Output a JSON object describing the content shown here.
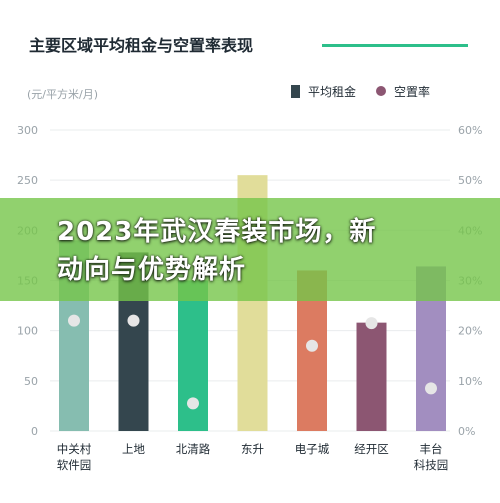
{
  "header": {
    "title": "主要区域平均租金与空置率表现",
    "unit": "(元/平方米/月)"
  },
  "legend": {
    "rent_label": "平均租金",
    "vacancy_label": "空置率"
  },
  "overlay": {
    "headline_line1": "2023年武汉春装市场，新",
    "headline_line2": "动向与优势解析"
  },
  "chart_data": {
    "type": "bar",
    "categories": [
      [
        "中关村",
        "软件园"
      ],
      [
        "上地"
      ],
      [
        "北清路"
      ],
      [
        "东升"
      ],
      [
        "电子城"
      ],
      [
        "经开区"
      ],
      [
        "丰台",
        "科技园"
      ]
    ],
    "series": [
      {
        "name": "平均租金",
        "axis": "left",
        "type": "bar",
        "values": [
          190,
          178,
          150,
          255,
          160,
          108,
          164
        ]
      },
      {
        "name": "空置率",
        "axis": "right",
        "type": "scatter",
        "values": [
          22,
          22,
          5.5,
          null,
          17,
          21.5,
          8.5
        ]
      }
    ],
    "ylim": [
      0,
      300
    ],
    "y_ticks": [
      0,
      50,
      100,
      150,
      200,
      250,
      300
    ],
    "y2lim": [
      0,
      60
    ],
    "y2_ticks": [
      "0%",
      "10%",
      "20%",
      "30%",
      "40%",
      "50%",
      "60%"
    ],
    "grid": true,
    "colors": {
      "bars": [
        "#86bdb0",
        "#34464e",
        "#2dbf8a",
        "#e1dd9a",
        "#dc7b61",
        "#8c5672",
        "#a28ec0"
      ],
      "dot": "#e6e6e6",
      "grid": "#e9ecee",
      "tick": "#9aa3a9",
      "label": "#1f2a33"
    }
  }
}
